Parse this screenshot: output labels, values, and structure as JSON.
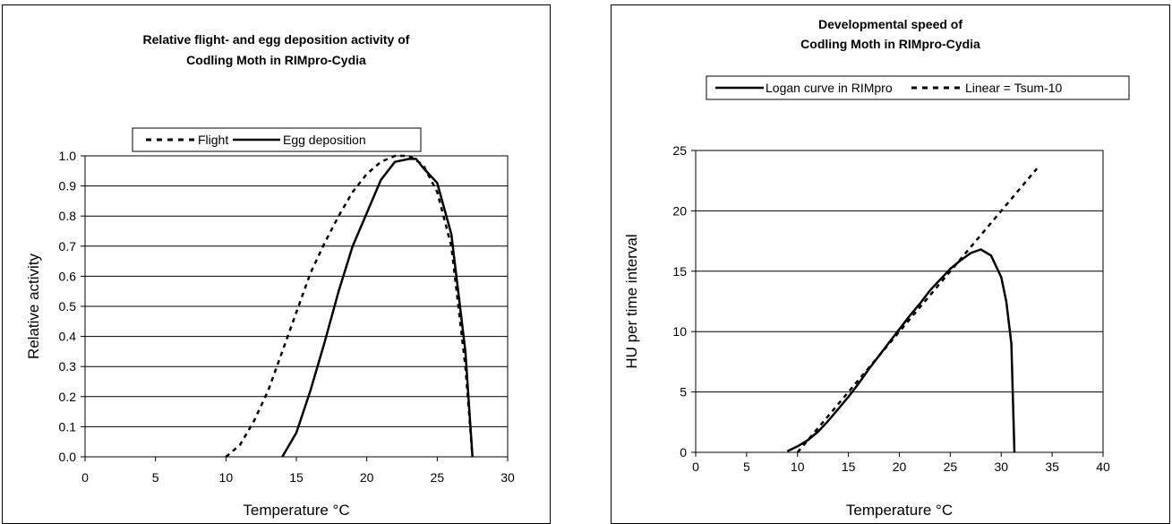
{
  "chart_data": [
    {
      "type": "line",
      "title_lines": [
        "Relative flight- and egg deposition activity of",
        "Codling Moth  in RIMpro-Cydia"
      ],
      "xlabel": "Temperature °C",
      "ylabel": "Relative activity",
      "xlim": [
        0,
        30
      ],
      "ylim": [
        0,
        1
      ],
      "x_ticks": [
        0,
        5,
        10,
        15,
        20,
        25,
        30
      ],
      "y_ticks": [
        0,
        0.1,
        0.2,
        0.3,
        0.4,
        0.5,
        0.6,
        0.7,
        0.8,
        0.9,
        1
      ],
      "y_tick_labels": [
        "0.0",
        "0.1",
        "0.2",
        "0.3",
        "0.4",
        "0.5",
        "0.6",
        "0.7",
        "0.8",
        "0.9",
        "1.0"
      ],
      "grid": "horizontal",
      "legend_position": "top",
      "series": [
        {
          "name": "Flight",
          "style": "dashed",
          "x": [
            10,
            11,
            12,
            13,
            14,
            15,
            16,
            17,
            18,
            19,
            20,
            21,
            22,
            23,
            24,
            25,
            26,
            27,
            27.5
          ],
          "y": [
            0.0,
            0.04,
            0.12,
            0.22,
            0.35,
            0.48,
            0.61,
            0.71,
            0.8,
            0.88,
            0.94,
            0.98,
            1.0,
            1.0,
            0.97,
            0.88,
            0.7,
            0.3,
            0.0
          ]
        },
        {
          "name": "Egg deposition",
          "style": "solid",
          "x": [
            14,
            15,
            16,
            17,
            18,
            19,
            20,
            21,
            22,
            23,
            23.5,
            24,
            25,
            26,
            27,
            27.5
          ],
          "y": [
            0.0,
            0.08,
            0.22,
            0.38,
            0.55,
            0.7,
            0.81,
            0.92,
            0.98,
            0.99,
            0.99,
            0.96,
            0.91,
            0.74,
            0.35,
            0.0
          ]
        }
      ]
    },
    {
      "type": "line",
      "title_lines": [
        "Developmental speed of",
        "Codling Moth in RIMpro-Cydia"
      ],
      "xlabel": "Temperature °C",
      "ylabel": "HU per time interval",
      "xlim": [
        0,
        40
      ],
      "ylim": [
        0,
        25
      ],
      "x_ticks": [
        0,
        5,
        10,
        15,
        20,
        25,
        30,
        35,
        40
      ],
      "y_ticks": [
        0,
        5,
        10,
        15,
        20,
        25
      ],
      "y_tick_labels": [
        "0",
        "5",
        "10",
        "15",
        "20",
        "25"
      ],
      "grid": "horizontal",
      "legend_position": "top",
      "series": [
        {
          "name": "Logan curve in RIMpro",
          "style": "solid",
          "x": [
            9,
            10,
            11,
            12,
            13,
            14,
            15,
            16,
            17,
            18,
            19,
            20,
            21,
            22,
            23,
            24,
            25,
            26,
            27,
            28,
            29,
            30,
            30.5,
            31,
            31.3
          ],
          "y": [
            0.1,
            0.5,
            1.0,
            1.7,
            2.6,
            3.6,
            4.6,
            5.7,
            6.9,
            8.0,
            9.1,
            10.2,
            11.3,
            12.3,
            13.4,
            14.3,
            15.2,
            15.9,
            16.5,
            16.8,
            16.3,
            14.5,
            12.5,
            9.0,
            0.0
          ]
        },
        {
          "name": "Linear = Tsum-10",
          "style": "dashed",
          "x": [
            10,
            15,
            20,
            25,
            30,
            33.5
          ],
          "y": [
            0,
            5,
            10,
            15,
            20,
            23.5
          ]
        }
      ]
    }
  ]
}
